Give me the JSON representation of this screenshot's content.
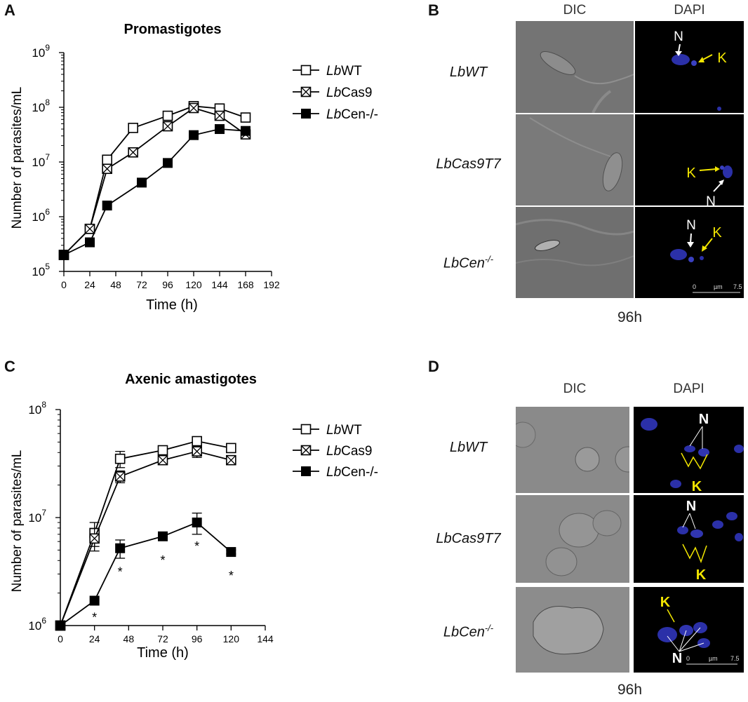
{
  "panels": {
    "A": "A",
    "B": "B",
    "C": "C",
    "D": "D"
  },
  "chart_data": [
    {
      "type": "line",
      "title": "Promastigotes",
      "xlabel": "Time (h)",
      "ylabel": "Number of parasites/mL",
      "yscale": "log",
      "ylim": [
        100000,
        1000000000
      ],
      "xlim": [
        0,
        192
      ],
      "xticks": [
        "0",
        "24",
        "48",
        "72",
        "96",
        "120",
        "144",
        "168",
        "192"
      ],
      "yticks": [
        {
          "value": 100000,
          "base": "10",
          "exp": "5"
        },
        {
          "value": 1000000,
          "base": "10",
          "exp": "6"
        },
        {
          "value": 10000000,
          "base": "10",
          "exp": "7"
        },
        {
          "value": 100000000,
          "base": "10",
          "exp": "8"
        },
        {
          "value": 1000000000,
          "base": "10",
          "exp": "9"
        }
      ],
      "legend_position": "right",
      "series": [
        {
          "name_prefix": "Lb",
          "name_suffix": "WT",
          "marker": "open-square",
          "x": [
            0,
            24,
            40,
            64,
            96,
            120,
            144,
            168
          ],
          "y": [
            200000,
            600000,
            11000000,
            42000000,
            70000000,
            105000000,
            95000000,
            65000000
          ]
        },
        {
          "name_prefix": "Lb",
          "name_suffix": "Cas9",
          "marker": "crossed-square",
          "x": [
            0,
            24,
            40,
            64,
            96,
            120,
            144,
            168
          ],
          "y": [
            200000,
            600000,
            7500000,
            15000000,
            45000000,
            97000000,
            70000000,
            32000000
          ]
        },
        {
          "name_prefix": "Lb",
          "name_suffix": "Cen-/-",
          "marker": "filled-square",
          "x": [
            0,
            24,
            40,
            72,
            96,
            120,
            144,
            168
          ],
          "y": [
            200000,
            340000,
            1600000,
            4200000,
            9600000,
            31000000,
            40000000,
            37000000
          ]
        }
      ]
    },
    {
      "type": "line",
      "title": "Axenic amastigotes",
      "xlabel": "Time (h)",
      "ylabel": "Number of parasites/mL",
      "yscale": "log",
      "ylim": [
        1000000,
        100000000
      ],
      "xlim": [
        0,
        144
      ],
      "xticks": [
        "0",
        "24",
        "48",
        "72",
        "96",
        "120",
        "144"
      ],
      "yticks": [
        {
          "value": 1000000,
          "base": "10",
          "exp": "6"
        },
        {
          "value": 10000000,
          "base": "10",
          "exp": "7"
        },
        {
          "value": 100000000,
          "base": "10",
          "exp": "8"
        }
      ],
      "legend_position": "right",
      "series": [
        {
          "name_prefix": "Lb",
          "name_suffix": "WT",
          "marker": "open-square",
          "x": [
            0,
            24,
            42,
            72,
            96,
            120
          ],
          "y": [
            1000000,
            7200000,
            35000000,
            42000000,
            51000000,
            44000000
          ],
          "err": [
            0,
            1800000,
            6000000,
            4000000,
            5000000,
            4000000
          ]
        },
        {
          "name_prefix": "Lb",
          "name_suffix": "Cas9",
          "marker": "crossed-square",
          "x": [
            0,
            24,
            42,
            72,
            96,
            120
          ],
          "y": [
            1000000,
            6400000,
            24000000,
            34000000,
            41000000,
            34000000
          ],
          "err": [
            0,
            1500000,
            3000000,
            3000000,
            5000000,
            3000000
          ]
        },
        {
          "name_prefix": "Lb",
          "name_suffix": "Cen-/-",
          "marker": "filled-square",
          "x": [
            0,
            24,
            42,
            72,
            96,
            120
          ],
          "y": [
            1000000,
            1700000,
            5200000,
            6700000,
            9000000,
            4800000
          ],
          "err": [
            0,
            0,
            1000000,
            300000,
            2000000,
            200000
          ],
          "significance": [
            "",
            "*",
            "*",
            "*",
            "*",
            "*"
          ]
        }
      ]
    }
  ],
  "micrographs": {
    "B": {
      "columns": [
        "DIC",
        "DAPI"
      ],
      "rows": [
        {
          "base": "LbWT",
          "sup": ""
        },
        {
          "base": "LbCas9T7",
          "sup": ""
        },
        {
          "base": "LbCen",
          "sup": "-/-"
        }
      ],
      "time": "96h",
      "scale_bar": {
        "left": "0",
        "unit": "µm",
        "right": "7.5"
      },
      "annotations": {
        "N": "N",
        "K": "K"
      }
    },
    "D": {
      "columns": [
        "DIC",
        "DAPI"
      ],
      "rows": [
        {
          "base": "LbWT",
          "sup": ""
        },
        {
          "base": "LbCas9T7",
          "sup": ""
        },
        {
          "base": "LbCen",
          "sup": "-/-"
        }
      ],
      "time": "96h",
      "scale_bar": {
        "left": "0",
        "unit": "µm",
        "right": "7.5"
      },
      "annotations": {
        "N": "N",
        "K": "K"
      }
    }
  },
  "colors": {
    "line": "#000000",
    "nucleus_arrow": "#ffffff",
    "kinetoplast_arrow": "#f2e600",
    "dapi_blue": "#2a2fa0"
  }
}
